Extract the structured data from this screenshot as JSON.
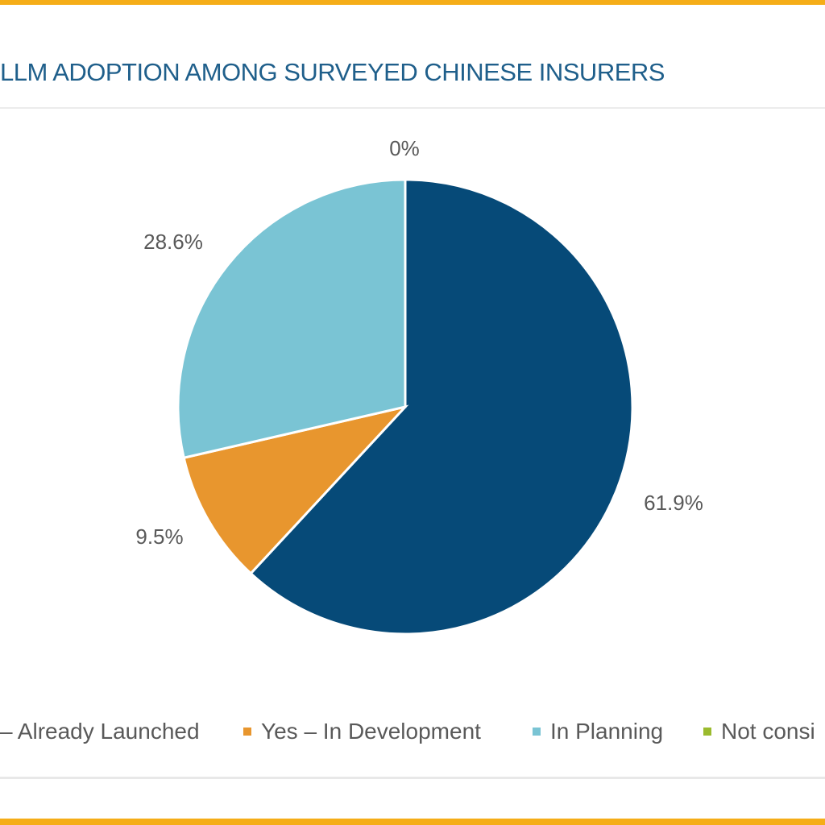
{
  "chart_data": {
    "type": "pie",
    "title": "LLM ADOPTION AMONG SURVEYED CHINESE INSURERS",
    "slices": [
      {
        "label": "– Already Launched",
        "value": 61.9,
        "data_label": "61.9%",
        "color": "#064a78"
      },
      {
        "label": "Yes – In Development",
        "value": 9.5,
        "data_label": "9.5%",
        "color": "#e8962e"
      },
      {
        "label": "In Planning",
        "value": 28.6,
        "data_label": "28.6%",
        "color": "#7ac4d4"
      },
      {
        "label": "Not consi",
        "value": 0,
        "data_label": "0%",
        "color": "#9bbb2e"
      }
    ],
    "legend_placement": "bottom",
    "start_angle": "top, clockwise"
  },
  "colors": {
    "frame": "#f5ad18",
    "title": "#1f5f8b"
  }
}
